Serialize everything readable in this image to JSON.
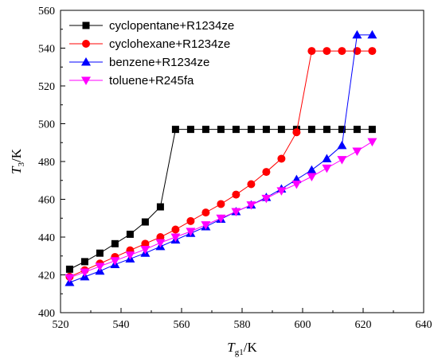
{
  "chart_data": {
    "type": "line",
    "xlabel_main": "T",
    "xlabel_sub": "g1",
    "xlabel_unit": "/K",
    "ylabel_main": "T",
    "ylabel_sub": "3",
    "ylabel_unit": "/K",
    "xlim": [
      520,
      640
    ],
    "ylim": [
      400,
      560
    ],
    "xticks": [
      "520",
      "540",
      "560",
      "580",
      "600",
      "620",
      "640"
    ],
    "yticks": [
      "400",
      "420",
      "440",
      "460",
      "480",
      "500",
      "520",
      "540",
      "560"
    ],
    "legend_position": "top-left",
    "series": [
      {
        "name": "cyclopentane+R1234ze",
        "color": "#000000",
        "marker": "square",
        "x": [
          523,
          528,
          533,
          538,
          543,
          548,
          553,
          558,
          563,
          568,
          573,
          578,
          583,
          588,
          593,
          598,
          603,
          608,
          613,
          618,
          623
        ],
        "y": [
          423,
          427,
          431.5,
          436.5,
          441.5,
          448,
          456,
          497,
          497,
          497,
          497,
          497,
          497,
          497,
          497,
          497,
          497,
          497,
          497,
          497,
          497
        ]
      },
      {
        "name": "cyclohexane+R1234ze",
        "color": "#ff0000",
        "marker": "circle",
        "x": [
          523,
          528,
          533,
          538,
          543,
          548,
          553,
          558,
          563,
          568,
          573,
          578,
          583,
          588,
          593,
          598,
          603,
          608,
          613,
          618,
          623
        ],
        "y": [
          419,
          422.5,
          426,
          429.5,
          433,
          436.5,
          440,
          444,
          448.5,
          453,
          457.5,
          462.5,
          468,
          474.5,
          481.5,
          495.5,
          538.5,
          538.5,
          538.5,
          538.5,
          538.5
        ]
      },
      {
        "name": "benzene+R1234ze",
        "color": "#0000ff",
        "marker": "triangle-up",
        "x": [
          523,
          528,
          533,
          538,
          543,
          548,
          553,
          558,
          563,
          568,
          573,
          578,
          583,
          588,
          593,
          598,
          603,
          608,
          613,
          618,
          623
        ],
        "y": [
          416,
          419,
          422,
          425.5,
          428.5,
          431.5,
          435,
          438.5,
          442,
          445.5,
          449.5,
          453.5,
          457,
          461,
          465.5,
          470.5,
          475.5,
          481.5,
          488.5,
          547,
          547
        ]
      },
      {
        "name": "toluene+R245fa",
        "color": "#ff00ff",
        "marker": "triangle-down",
        "x": [
          523,
          528,
          533,
          538,
          543,
          548,
          553,
          558,
          563,
          568,
          573,
          578,
          583,
          588,
          593,
          598,
          603,
          608,
          613,
          618,
          623
        ],
        "y": [
          418.5,
          421.5,
          424.5,
          427.5,
          430.5,
          433.5,
          437,
          440,
          443,
          446.5,
          450,
          453.5,
          457,
          460.5,
          464.5,
          468,
          472,
          476.5,
          481,
          485.5,
          490.5
        ]
      }
    ]
  }
}
